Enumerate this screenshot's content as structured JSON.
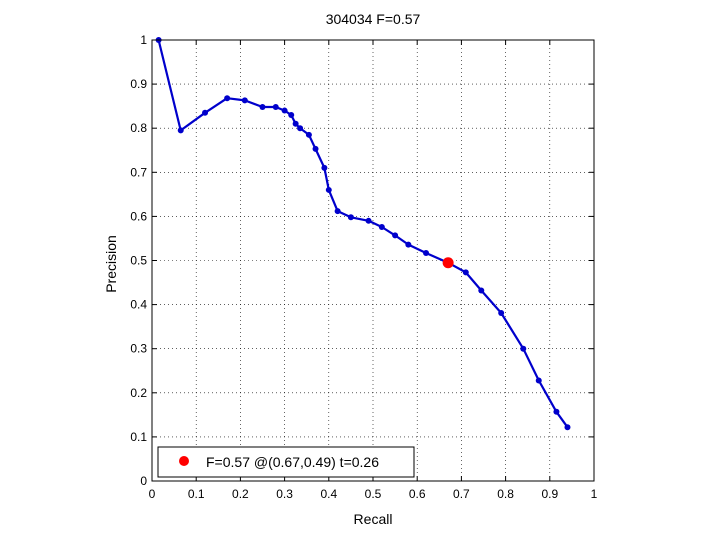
{
  "chart_data": {
    "type": "line",
    "title": "304034 F=0.57",
    "xlabel": "Recall",
    "ylabel": "Precision",
    "xlim": [
      0,
      1
    ],
    "ylim": [
      0,
      1
    ],
    "grid": true,
    "xticks": [
      "0",
      "0.1",
      "0.2",
      "0.3",
      "0.4",
      "0.5",
      "0.6",
      "0.7",
      "0.8",
      "0.9",
      "1"
    ],
    "yticks": [
      "0",
      "0.1",
      "0.2",
      "0.3",
      "0.4",
      "0.5",
      "0.6",
      "0.7",
      "0.8",
      "0.9",
      "1"
    ],
    "series": [
      {
        "color": "#0000cc",
        "x": [
          0.015,
          0.065,
          0.12,
          0.17,
          0.21,
          0.25,
          0.28,
          0.3,
          0.315,
          0.325,
          0.335,
          0.355,
          0.37,
          0.39,
          0.4,
          0.42,
          0.45,
          0.49,
          0.52,
          0.55,
          0.58,
          0.62,
          0.67,
          0.71,
          0.745,
          0.79,
          0.84,
          0.875,
          0.915,
          0.94
        ],
        "y": [
          1.0,
          0.795,
          0.835,
          0.868,
          0.863,
          0.848,
          0.848,
          0.84,
          0.83,
          0.81,
          0.8,
          0.785,
          0.753,
          0.71,
          0.66,
          0.612,
          0.598,
          0.59,
          0.576,
          0.557,
          0.536,
          0.517,
          0.495,
          0.473,
          0.432,
          0.381,
          0.3,
          0.228,
          0.157,
          0.122
        ]
      }
    ],
    "highlight": {
      "x": 0.67,
      "y": 0.495,
      "color": "#ff0000"
    },
    "legend": {
      "position": "bottom-left",
      "text": "F=0.57 @(0.67,0.49) t=0.26"
    }
  }
}
